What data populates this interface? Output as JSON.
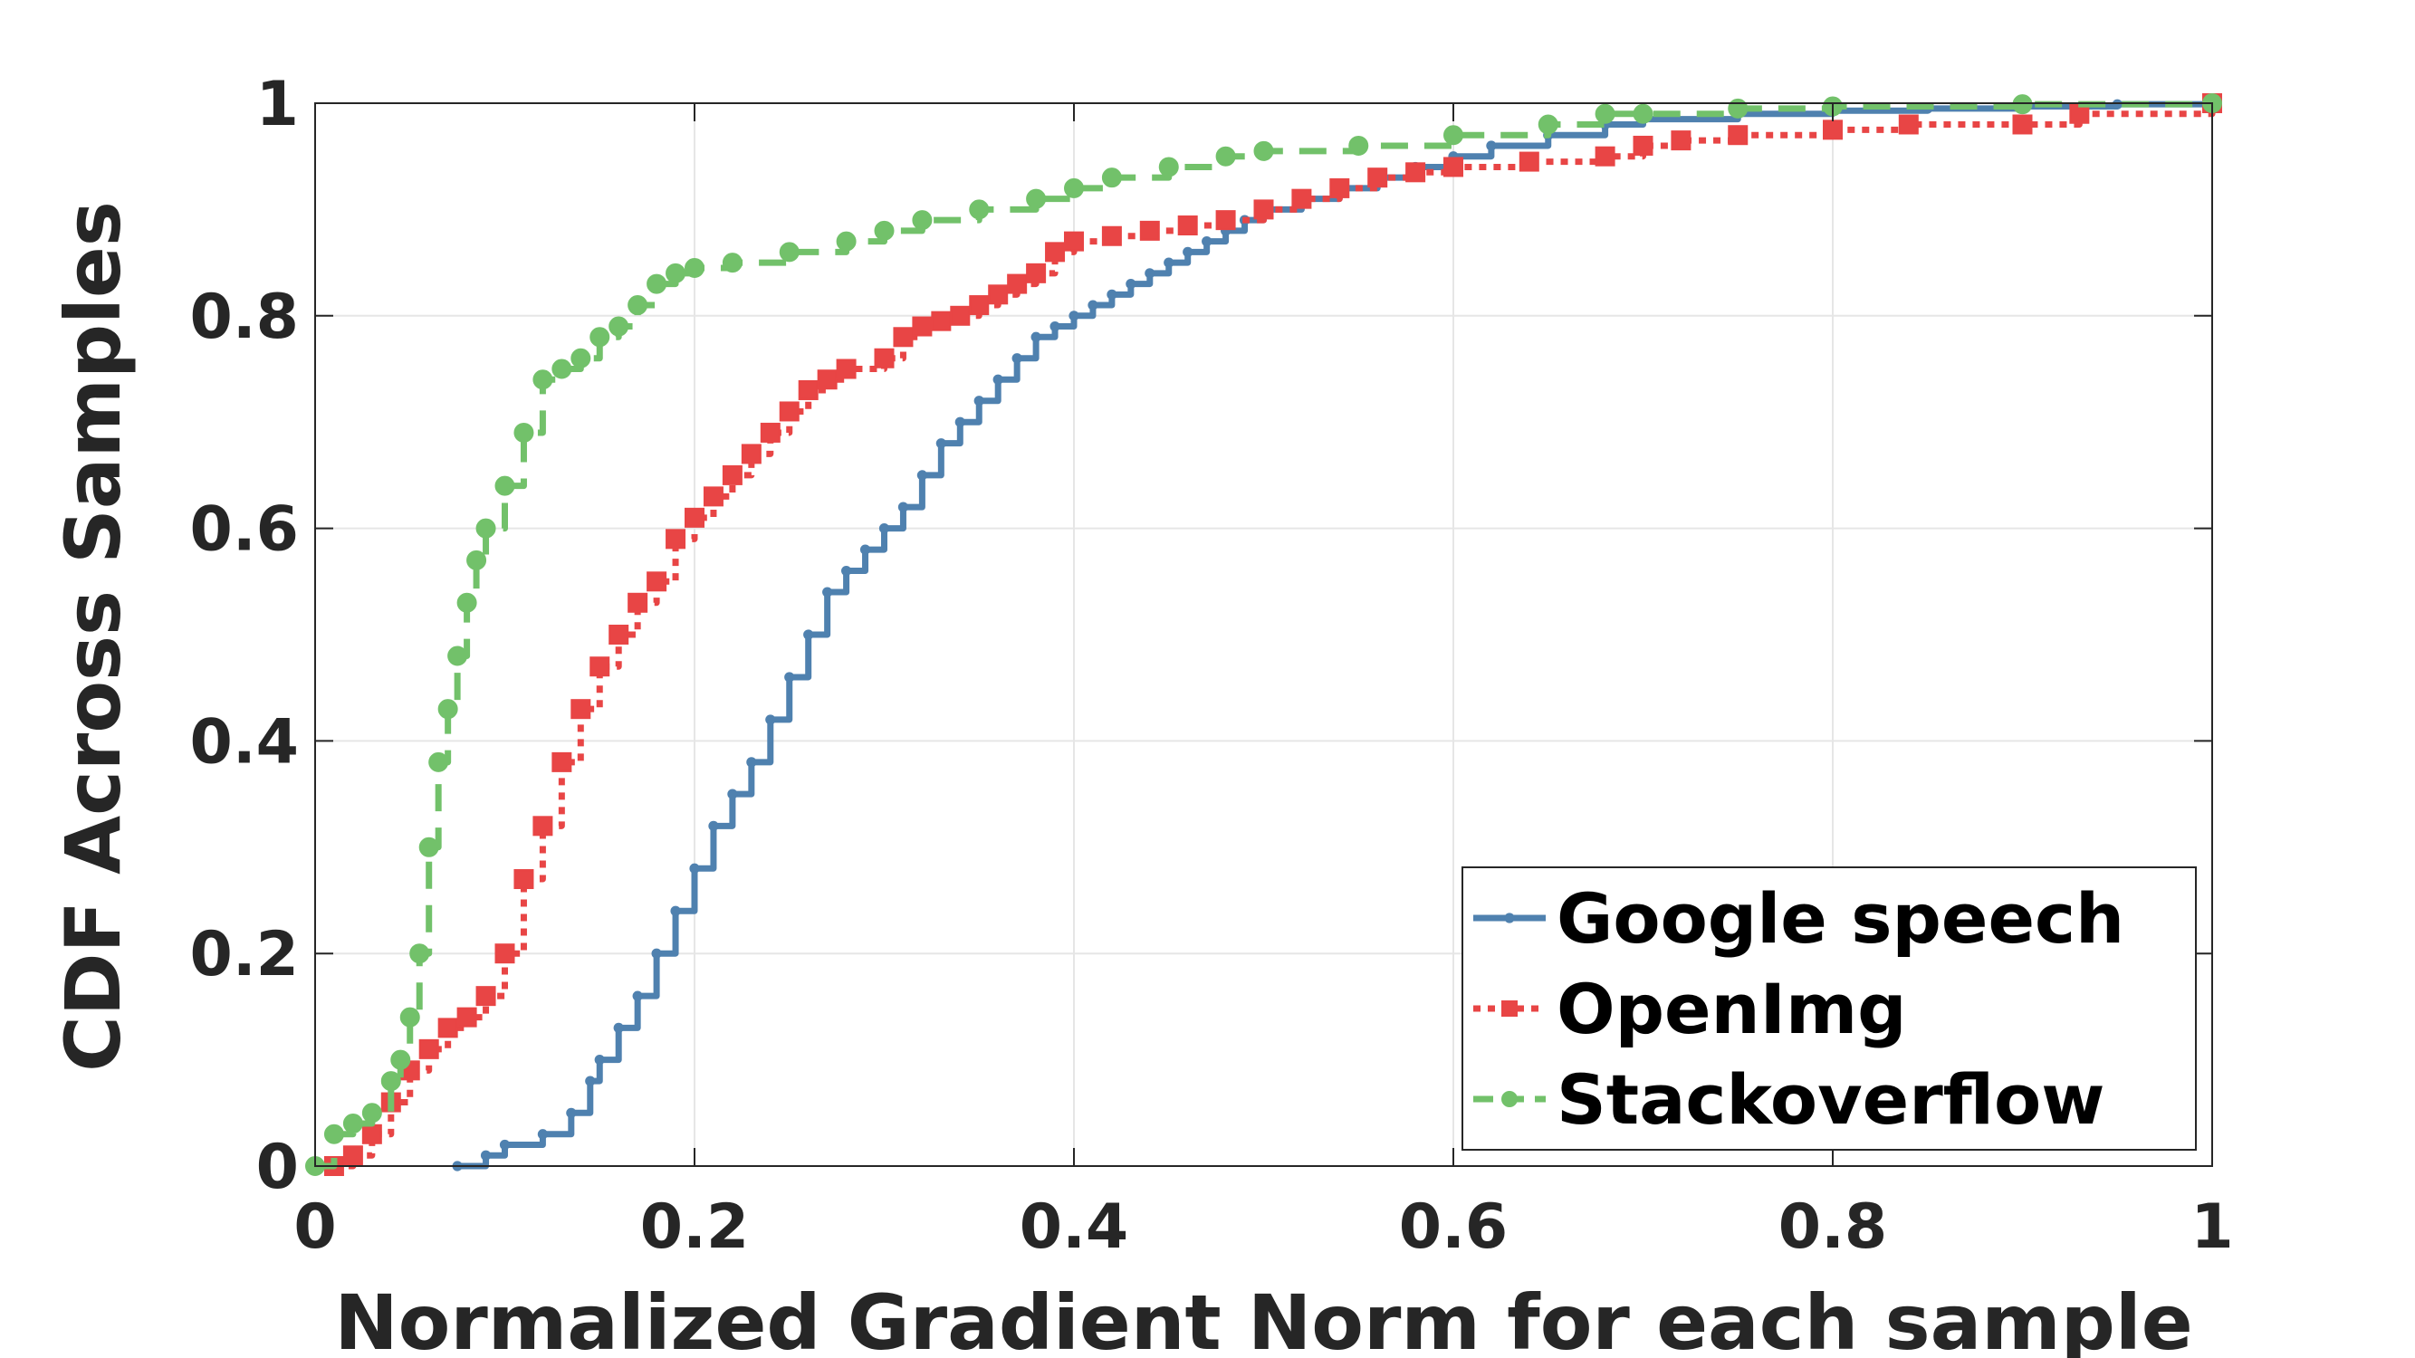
{
  "chart_data": {
    "type": "line",
    "subtype": "cdf",
    "title": "",
    "xlabel": "Normalized Gradient Norm for each sample",
    "ylabel": "CDF Across Samples",
    "xlim": [
      0,
      1
    ],
    "ylim": [
      0,
      1
    ],
    "x_ticks": [
      0,
      0.2,
      0.4,
      0.6,
      0.8,
      1
    ],
    "x_tick_labels": [
      "0",
      "0.2",
      "0.4",
      "0.6",
      "0.8",
      "1"
    ],
    "y_ticks": [
      0,
      0.2,
      0.4,
      0.6,
      0.8,
      1
    ],
    "y_tick_labels": [
      "0",
      "0.2",
      "0.4",
      "0.6",
      "0.8",
      "1"
    ],
    "grid": true,
    "legend_position": "bottom-right",
    "series": [
      {
        "name": "Google speech",
        "color": "#4f81af",
        "line_style": "solid",
        "marker": "dot",
        "x": [
          0.075,
          0.09,
          0.1,
          0.12,
          0.135,
          0.145,
          0.15,
          0.16,
          0.17,
          0.18,
          0.19,
          0.2,
          0.21,
          0.22,
          0.23,
          0.24,
          0.25,
          0.26,
          0.27,
          0.28,
          0.29,
          0.3,
          0.31,
          0.32,
          0.33,
          0.34,
          0.35,
          0.36,
          0.37,
          0.38,
          0.39,
          0.4,
          0.41,
          0.42,
          0.43,
          0.44,
          0.45,
          0.46,
          0.47,
          0.48,
          0.49,
          0.5,
          0.52,
          0.54,
          0.56,
          0.58,
          0.6,
          0.62,
          0.65,
          0.68,
          0.7,
          0.75,
          0.8,
          0.85,
          0.9,
          0.95,
          1.0
        ],
        "y": [
          0.0,
          0.01,
          0.02,
          0.03,
          0.05,
          0.08,
          0.1,
          0.13,
          0.16,
          0.2,
          0.24,
          0.28,
          0.32,
          0.35,
          0.38,
          0.42,
          0.46,
          0.5,
          0.54,
          0.56,
          0.58,
          0.6,
          0.62,
          0.65,
          0.68,
          0.7,
          0.72,
          0.74,
          0.76,
          0.78,
          0.79,
          0.8,
          0.81,
          0.82,
          0.83,
          0.84,
          0.85,
          0.86,
          0.87,
          0.88,
          0.89,
          0.9,
          0.91,
          0.92,
          0.93,
          0.94,
          0.95,
          0.96,
          0.97,
          0.98,
          0.985,
          0.99,
          0.993,
          0.995,
          0.997,
          0.999,
          1.0
        ]
      },
      {
        "name": "OpenImg",
        "color": "#e84545",
        "line_style": "dotted",
        "marker": "square",
        "x": [
          0.01,
          0.02,
          0.03,
          0.04,
          0.05,
          0.06,
          0.07,
          0.08,
          0.09,
          0.1,
          0.11,
          0.12,
          0.13,
          0.14,
          0.15,
          0.16,
          0.17,
          0.18,
          0.19,
          0.2,
          0.21,
          0.22,
          0.23,
          0.24,
          0.25,
          0.26,
          0.27,
          0.28,
          0.3,
          0.31,
          0.32,
          0.33,
          0.34,
          0.35,
          0.36,
          0.37,
          0.38,
          0.39,
          0.4,
          0.42,
          0.44,
          0.46,
          0.48,
          0.5,
          0.52,
          0.54,
          0.56,
          0.58,
          0.6,
          0.64,
          0.68,
          0.7,
          0.72,
          0.75,
          0.8,
          0.84,
          0.9,
          0.93,
          1.0
        ],
        "y": [
          0.0,
          0.01,
          0.03,
          0.06,
          0.09,
          0.11,
          0.13,
          0.14,
          0.16,
          0.2,
          0.27,
          0.32,
          0.38,
          0.43,
          0.47,
          0.5,
          0.53,
          0.55,
          0.59,
          0.61,
          0.63,
          0.65,
          0.67,
          0.69,
          0.71,
          0.73,
          0.74,
          0.75,
          0.76,
          0.78,
          0.79,
          0.795,
          0.8,
          0.81,
          0.82,
          0.83,
          0.84,
          0.86,
          0.87,
          0.875,
          0.88,
          0.885,
          0.89,
          0.9,
          0.91,
          0.92,
          0.93,
          0.935,
          0.94,
          0.945,
          0.95,
          0.96,
          0.965,
          0.97,
          0.975,
          0.98,
          0.98,
          0.99,
          1.0
        ]
      },
      {
        "name": "Stackoverflow",
        "color": "#72c16a",
        "line_style": "dashed",
        "marker": "circle",
        "x": [
          0.0,
          0.01,
          0.02,
          0.03,
          0.04,
          0.045,
          0.05,
          0.055,
          0.06,
          0.065,
          0.07,
          0.075,
          0.08,
          0.085,
          0.09,
          0.1,
          0.11,
          0.12,
          0.13,
          0.14,
          0.15,
          0.16,
          0.17,
          0.18,
          0.19,
          0.2,
          0.22,
          0.25,
          0.28,
          0.3,
          0.32,
          0.35,
          0.38,
          0.4,
          0.42,
          0.45,
          0.48,
          0.5,
          0.55,
          0.6,
          0.65,
          0.68,
          0.7,
          0.75,
          0.8,
          0.9,
          1.0
        ],
        "y": [
          0.0,
          0.03,
          0.04,
          0.05,
          0.08,
          0.1,
          0.14,
          0.2,
          0.3,
          0.38,
          0.43,
          0.48,
          0.53,
          0.57,
          0.6,
          0.64,
          0.69,
          0.74,
          0.75,
          0.76,
          0.78,
          0.79,
          0.81,
          0.83,
          0.84,
          0.845,
          0.85,
          0.86,
          0.87,
          0.88,
          0.89,
          0.9,
          0.91,
          0.92,
          0.93,
          0.94,
          0.95,
          0.955,
          0.96,
          0.97,
          0.98,
          0.99,
          0.99,
          0.995,
          0.997,
          0.999,
          1.0
        ]
      }
    ]
  }
}
